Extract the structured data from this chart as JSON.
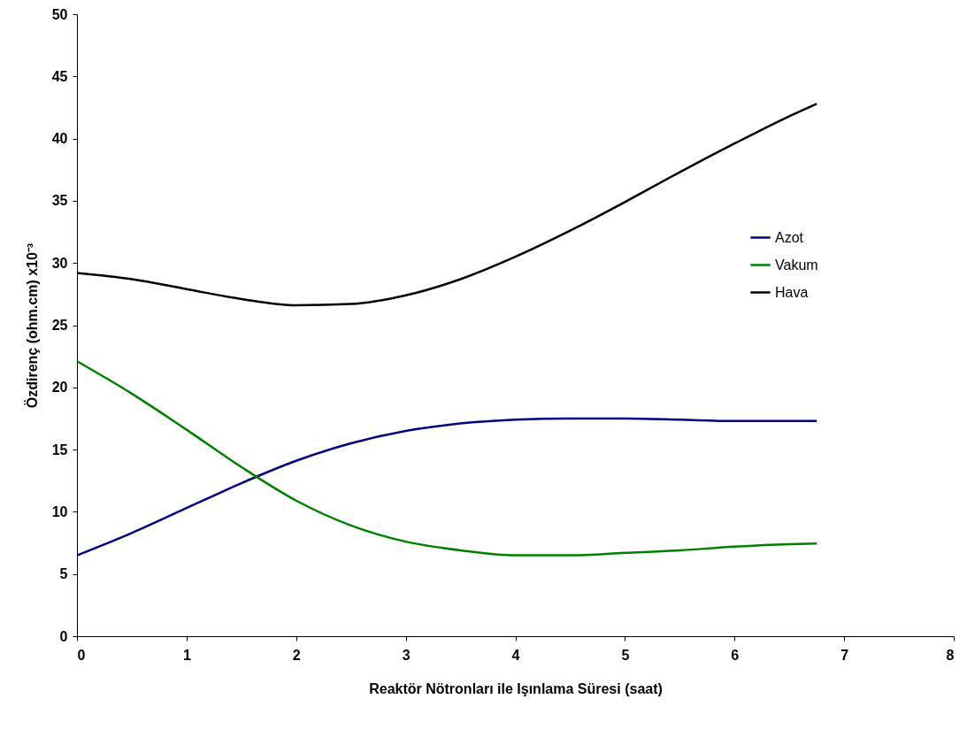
{
  "chart_data": {
    "type": "line",
    "xlabel": "Reaktör Nötronları ile Işınlama Süresi (saat)",
    "ylabel": "Özdirenç (ohm.cm) x10⁻³",
    "xlim": [
      0,
      8
    ],
    "xticks": [
      0,
      1,
      2,
      3,
      4,
      5,
      6,
      7,
      8
    ],
    "ylim": [
      0,
      50
    ],
    "yticks": [
      0,
      5,
      10,
      15,
      20,
      25,
      30,
      35,
      40,
      45,
      50
    ],
    "grid": false,
    "legend": "right",
    "marker": "none",
    "line_style": "solid",
    "series": [
      {
        "name": "Azot",
        "color": "#000080",
        "x": [
          0,
          0.5,
          1,
          1.5,
          2,
          2.5,
          3,
          3.5,
          4,
          4.5,
          5,
          5.5,
          6,
          6.5,
          6.75
        ],
        "values": [
          6.5,
          8.3,
          10.3,
          12.3,
          14.1,
          15.5,
          16.5,
          17.1,
          17.4,
          17.5,
          17.5,
          17.4,
          17.3,
          17.3,
          17.3
        ]
      },
      {
        "name": "Vakum",
        "color": "#008000",
        "x": [
          0,
          0.5,
          1,
          1.5,
          2,
          2.5,
          3,
          3.5,
          4,
          4.5,
          5,
          5.5,
          6,
          6.5,
          6.75
        ],
        "values": [
          22.1,
          19.5,
          16.6,
          13.6,
          10.9,
          8.9,
          7.6,
          6.9,
          6.5,
          6.5,
          6.7,
          6.9,
          7.2,
          7.4,
          7.45
        ]
      },
      {
        "name": "Hava",
        "color": "#000000",
        "x": [
          0,
          0.5,
          1,
          1.5,
          2,
          2.5,
          3,
          3.5,
          4,
          4.5,
          5,
          5.5,
          6,
          6.5,
          6.75
        ],
        "values": [
          29.2,
          28.7,
          27.9,
          27.1,
          26.6,
          26.7,
          27.4,
          28.7,
          30.5,
          32.6,
          34.9,
          37.3,
          39.6,
          41.8,
          42.8
        ]
      }
    ]
  }
}
